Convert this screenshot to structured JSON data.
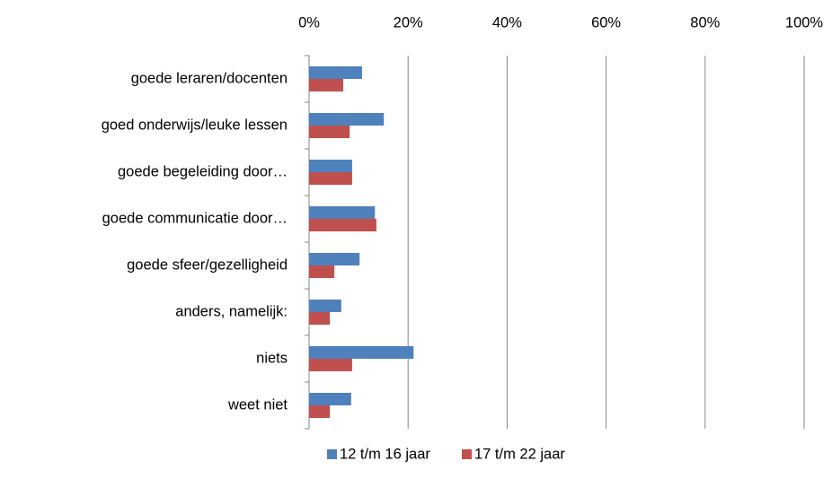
{
  "chart_data": {
    "type": "barh",
    "categories": [
      "goede leraren/docenten",
      "goed onderwijs/leuke lessen",
      "goede begeleiding door…",
      "goede communicatie door…",
      "goede sfeer/gezelligheid",
      "anders, namelijk:",
      "niets",
      "weet niet"
    ],
    "series": [
      {
        "name": "12 t/m 16 jaar",
        "color": "#4f81bd",
        "values": [
          10.7,
          15.1,
          8.7,
          13.3,
          10.2,
          6.5,
          21.1,
          8.5
        ]
      },
      {
        "name": "17 t/m 22 jaar",
        "color": "#c0504d",
        "values": [
          6.9,
          8.2,
          8.7,
          13.6,
          5.1,
          4.2,
          8.7,
          4.2
        ]
      }
    ],
    "xlim": [
      0,
      100
    ],
    "xticks": [
      {
        "value": 0,
        "label": "0%"
      },
      {
        "value": 20,
        "label": "20%"
      },
      {
        "value": 40,
        "label": "40%"
      },
      {
        "value": 60,
        "label": "60%"
      },
      {
        "value": 80,
        "label": "80%"
      },
      {
        "value": 100,
        "label": "100%"
      }
    ],
    "grid": true,
    "legend": "bottom"
  }
}
